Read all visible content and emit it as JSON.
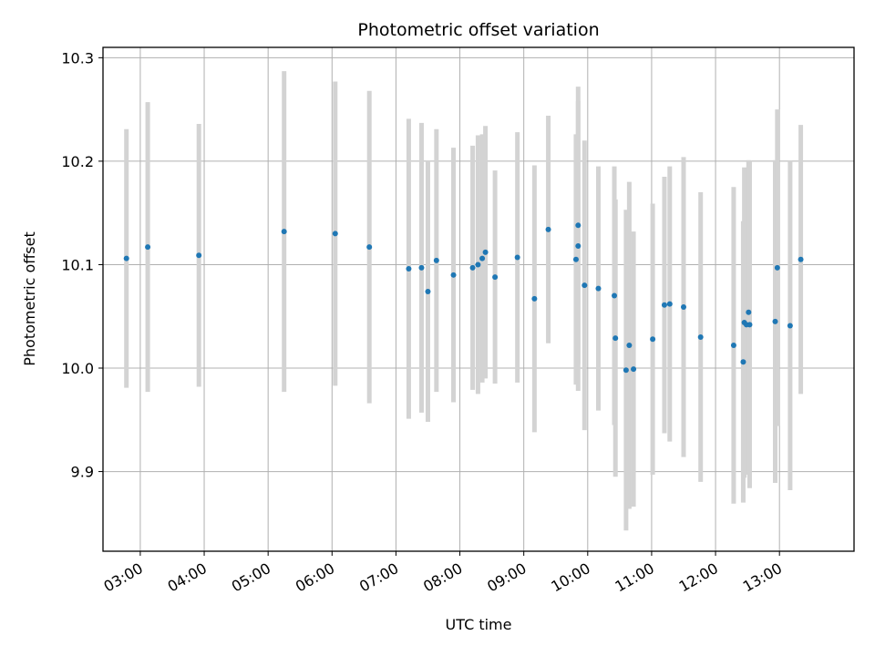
{
  "chart_data": {
    "type": "scatter",
    "title": "Photometric offset variation",
    "xlabel": "UTC time",
    "ylabel": "Photometric offset",
    "x_unit": "hours UTC",
    "xlim": [
      "02:25",
      "14:10"
    ],
    "ylim": [
      9.823,
      10.31
    ],
    "grid": true,
    "x_ticks": [
      "03:00",
      "04:00",
      "05:00",
      "06:00",
      "07:00",
      "08:00",
      "09:00",
      "10:00",
      "11:00",
      "12:00",
      "13:00"
    ],
    "y_ticks": [
      "9.9",
      "10.0",
      "10.1",
      "10.2",
      "10.3"
    ],
    "marker_color": "#1f77b4",
    "errorbar_color": "#d3d3d3",
    "series": [
      {
        "x": [
          "02:47",
          "03:07",
          "03:55",
          "05:15",
          "06:03",
          "06:35",
          "07:12",
          "07:24",
          "07:30",
          "07:38",
          "07:54",
          "08:12",
          "08:17",
          "08:21",
          "08:24",
          "08:33",
          "08:54",
          "09:10",
          "09:23",
          "09:49",
          "09:51",
          "09:51",
          "09:57",
          "10:10",
          "10:25",
          "10:26",
          "10:36",
          "10:39",
          "10:43",
          "11:01",
          "11:12",
          "11:17",
          "11:30",
          "11:46",
          "12:17",
          "12:26",
          "12:27",
          "12:29",
          "12:31",
          "12:32",
          "12:56",
          "12:58",
          "13:10",
          "13:20"
        ],
        "y": [
          10.106,
          10.117,
          10.109,
          10.132,
          10.13,
          10.117,
          10.096,
          10.097,
          10.074,
          10.104,
          10.09,
          10.097,
          10.1,
          10.106,
          10.112,
          10.088,
          10.107,
          10.067,
          10.134,
          10.105,
          10.138,
          10.118,
          10.08,
          10.077,
          10.07,
          10.029,
          9.998,
          10.022,
          9.999,
          10.028,
          10.061,
          10.062,
          10.059,
          10.03,
          10.022,
          10.006,
          10.044,
          10.042,
          10.054,
          10.042,
          10.045,
          10.097,
          10.041,
          10.105
        ],
        "err": [
          0.125,
          0.14,
          0.127,
          0.155,
          0.147,
          0.151,
          0.145,
          0.14,
          0.126,
          0.127,
          0.123,
          0.118,
          0.125,
          0.12,
          0.122,
          0.103,
          0.121,
          0.129,
          0.11,
          0.121,
          0.134,
          0.14,
          0.14,
          0.118,
          0.125,
          0.134,
          0.155,
          0.158,
          0.133,
          0.131,
          0.124,
          0.133,
          0.145,
          0.14,
          0.153,
          0.136,
          0.15,
          0.145,
          0.147,
          0.158,
          0.156,
          0.153,
          0.159,
          0.13
        ]
      }
    ]
  }
}
